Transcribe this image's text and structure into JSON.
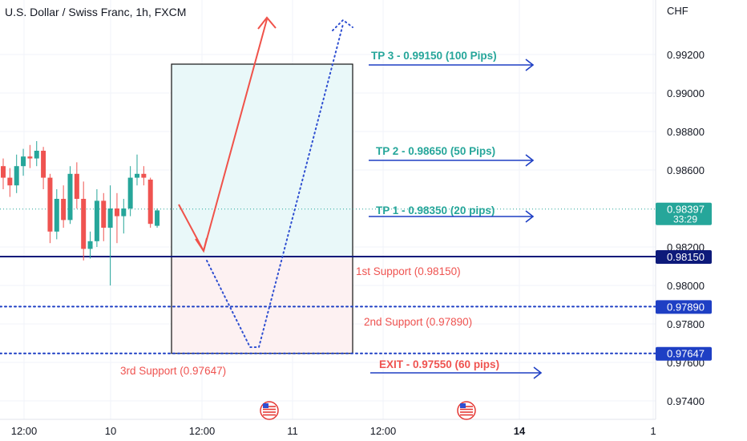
{
  "chart_data": {
    "type": "candlestick",
    "title": "U.S. Dollar / Swiss Franc, 1h, FXCM",
    "currency": "CHF",
    "ylim": [
      0.9732,
      0.9936
    ],
    "y_ticks": [
      "0.99200",
      "0.99000",
      "0.98800",
      "0.98600",
      "0.98200",
      "0.98000",
      "0.97800",
      "0.97600",
      "0.97400"
    ],
    "x_ticks": [
      {
        "label": "12:00",
        "bold": false
      },
      {
        "label": "10",
        "bold": false
      },
      {
        "label": "12:00",
        "bold": false
      },
      {
        "label": "11",
        "bold": false
      },
      {
        "label": "12:00",
        "bold": false
      },
      {
        "label": "14",
        "bold": true
      },
      {
        "label": "1",
        "bold": false
      }
    ],
    "candles": [
      [
        0.9862,
        0.9866,
        0.985,
        0.9856
      ],
      [
        0.9856,
        0.9861,
        0.9846,
        0.9852
      ],
      [
        0.9852,
        0.9868,
        0.9848,
        0.9862
      ],
      [
        0.9862,
        0.9871,
        0.9857,
        0.9867
      ],
      [
        0.9867,
        0.9873,
        0.9861,
        0.9866
      ],
      [
        0.9866,
        0.9875,
        0.9862,
        0.987
      ],
      [
        0.987,
        0.9872,
        0.985,
        0.9856
      ],
      [
        0.9856,
        0.9858,
        0.9822,
        0.9828
      ],
      [
        0.9828,
        0.985,
        0.9824,
        0.9845
      ],
      [
        0.9845,
        0.9852,
        0.983,
        0.9834
      ],
      [
        0.9834,
        0.9862,
        0.9832,
        0.9858
      ],
      [
        0.9858,
        0.9864,
        0.984,
        0.9845
      ],
      [
        0.9845,
        0.9854,
        0.9813,
        0.9819
      ],
      [
        0.9819,
        0.9828,
        0.9814,
        0.9823
      ],
      [
        0.9823,
        0.985,
        0.982,
        0.9844
      ],
      [
        0.9844,
        0.9848,
        0.9823,
        0.983
      ],
      [
        0.983,
        0.9852,
        0.98,
        0.984
      ],
      [
        0.984,
        0.9848,
        0.9822,
        0.9836
      ],
      [
        0.9836,
        0.9845,
        0.9827,
        0.984
      ],
      [
        0.984,
        0.9862,
        0.9836,
        0.9856
      ],
      [
        0.9856,
        0.9868,
        0.9852,
        0.9858
      ],
      [
        0.9858,
        0.9862,
        0.9852,
        0.9856
      ],
      [
        0.9855,
        0.9856,
        0.983,
        0.9832
      ],
      [
        0.9831,
        0.984,
        0.983,
        0.9839
      ]
    ],
    "price_badges": [
      {
        "value": 0.98397,
        "label": "0.98397",
        "sub": "33:29",
        "color": "#26a69a"
      },
      {
        "value": 0.9815,
        "label": "0.98150",
        "color": "#0d1a7a"
      },
      {
        "value": 0.9789,
        "label": "0.97890",
        "color": "#1e3fc4"
      },
      {
        "value": 0.97647,
        "label": "0.97647",
        "color": "#1e3fc4"
      }
    ],
    "levels": [
      {
        "value": 0.9815,
        "style": "solid",
        "color": "#0d1a7a"
      },
      {
        "value": 0.9789,
        "style": "dotted",
        "color": "#1e3fc4"
      },
      {
        "value": 0.97647,
        "style": "dotted",
        "color": "#1e3fc4"
      }
    ],
    "position_box": {
      "entry": 0.9815,
      "target": 0.9915,
      "stop": 0.97647
    },
    "annotations": [
      {
        "text": "TP 3 - 0.99150 (100 Pips)",
        "color": "#26a69a",
        "arrow": true
      },
      {
        "text": "TP 2 - 0.98650 (50 Pips)",
        "color": "#26a69a",
        "arrow": true
      },
      {
        "text": "TP 1 - 0.98350 (20 pips)",
        "color": "#26a69a",
        "arrow": true
      },
      {
        "text": "1st Support (0.98150)",
        "color": "#ef5350",
        "arrow": false
      },
      {
        "text": "2nd Support (0.97890)",
        "color": "#ef5350",
        "arrow": false
      },
      {
        "text": "3rd Support (0.97647)",
        "color": "#ef5350",
        "arrow": false
      },
      {
        "text": "EXIT - 0.97550 (60 pips)",
        "color": "#ef5350",
        "arrow": true
      }
    ],
    "colors": {
      "up": "#26a69a",
      "down": "#ef5350",
      "red_path": "#f0524a",
      "blue_path": "#2f4fd1"
    }
  }
}
